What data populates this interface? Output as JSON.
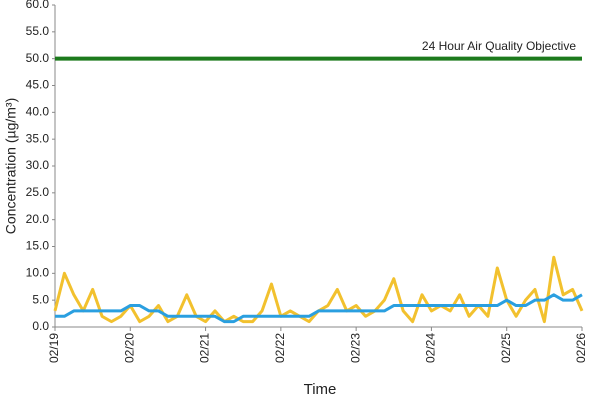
{
  "chart_data": {
    "type": "line",
    "x_label": "Time",
    "y_label": "Concentration (µg/m³)",
    "categories": [
      "02/19",
      null,
      null,
      null,
      null,
      null,
      null,
      null,
      "02/20",
      null,
      null,
      null,
      null,
      null,
      null,
      null,
      "02/21",
      null,
      null,
      null,
      null,
      null,
      null,
      null,
      "02/22",
      null,
      null,
      null,
      null,
      null,
      null,
      null,
      "02/23",
      null,
      null,
      null,
      null,
      null,
      null,
      null,
      "02/24",
      null,
      null,
      null,
      null,
      null,
      null,
      null,
      "02/25",
      null,
      null,
      null,
      null,
      null,
      null,
      null,
      "02/26"
    ],
    "series": [
      {
        "color": "#f2c12e",
        "values": [
          3,
          10,
          6,
          3,
          7,
          2,
          1,
          2,
          4,
          1,
          2,
          4,
          1,
          2,
          6,
          2,
          1,
          3,
          1,
          2,
          1,
          1,
          3,
          8,
          2,
          3,
          2,
          1,
          3,
          4,
          7,
          3,
          4,
          2,
          3,
          5,
          9,
          3,
          1,
          6,
          3,
          4,
          3,
          6,
          2,
          4,
          2,
          11,
          5,
          2,
          5,
          7,
          1,
          13,
          6,
          7,
          3
        ]
      },
      {
        "color": "#2a9fe0",
        "values": [
          2,
          2,
          3,
          3,
          3,
          3,
          3,
          3,
          4,
          4,
          3,
          3,
          2,
          2,
          2,
          2,
          2,
          2,
          1,
          1,
          2,
          2,
          2,
          2,
          2,
          2,
          2,
          2,
          3,
          3,
          3,
          3,
          3,
          3,
          3,
          3,
          4,
          4,
          4,
          4,
          4,
          4,
          4,
          4,
          4,
          4,
          4,
          4,
          5,
          4,
          4,
          5,
          5,
          6,
          5,
          5,
          6
        ]
      }
    ],
    "threshold": {
      "label": "24 Hour Air Quality Objective",
      "value": 50,
      "color": "#1c7a1c"
    },
    "ylim": [
      0,
      60
    ],
    "yticks": [
      {
        "value": 0,
        "label": "0.0"
      },
      {
        "value": 5,
        "label": "5.0"
      },
      {
        "value": 10,
        "label": "10.0"
      },
      {
        "value": 15,
        "label": "15.0"
      },
      {
        "value": 20,
        "label": "20.0"
      },
      {
        "value": 25,
        "label": "25.0"
      },
      {
        "value": 30,
        "label": "30.0"
      },
      {
        "value": 35,
        "label": "35.0"
      },
      {
        "value": 40,
        "label": "40.0"
      },
      {
        "value": 45,
        "label": "45.0"
      },
      {
        "value": 50,
        "label": "50.0"
      },
      {
        "value": 55,
        "label": "55.0"
      },
      {
        "value": 60,
        "label": "60.0"
      }
    ]
  }
}
